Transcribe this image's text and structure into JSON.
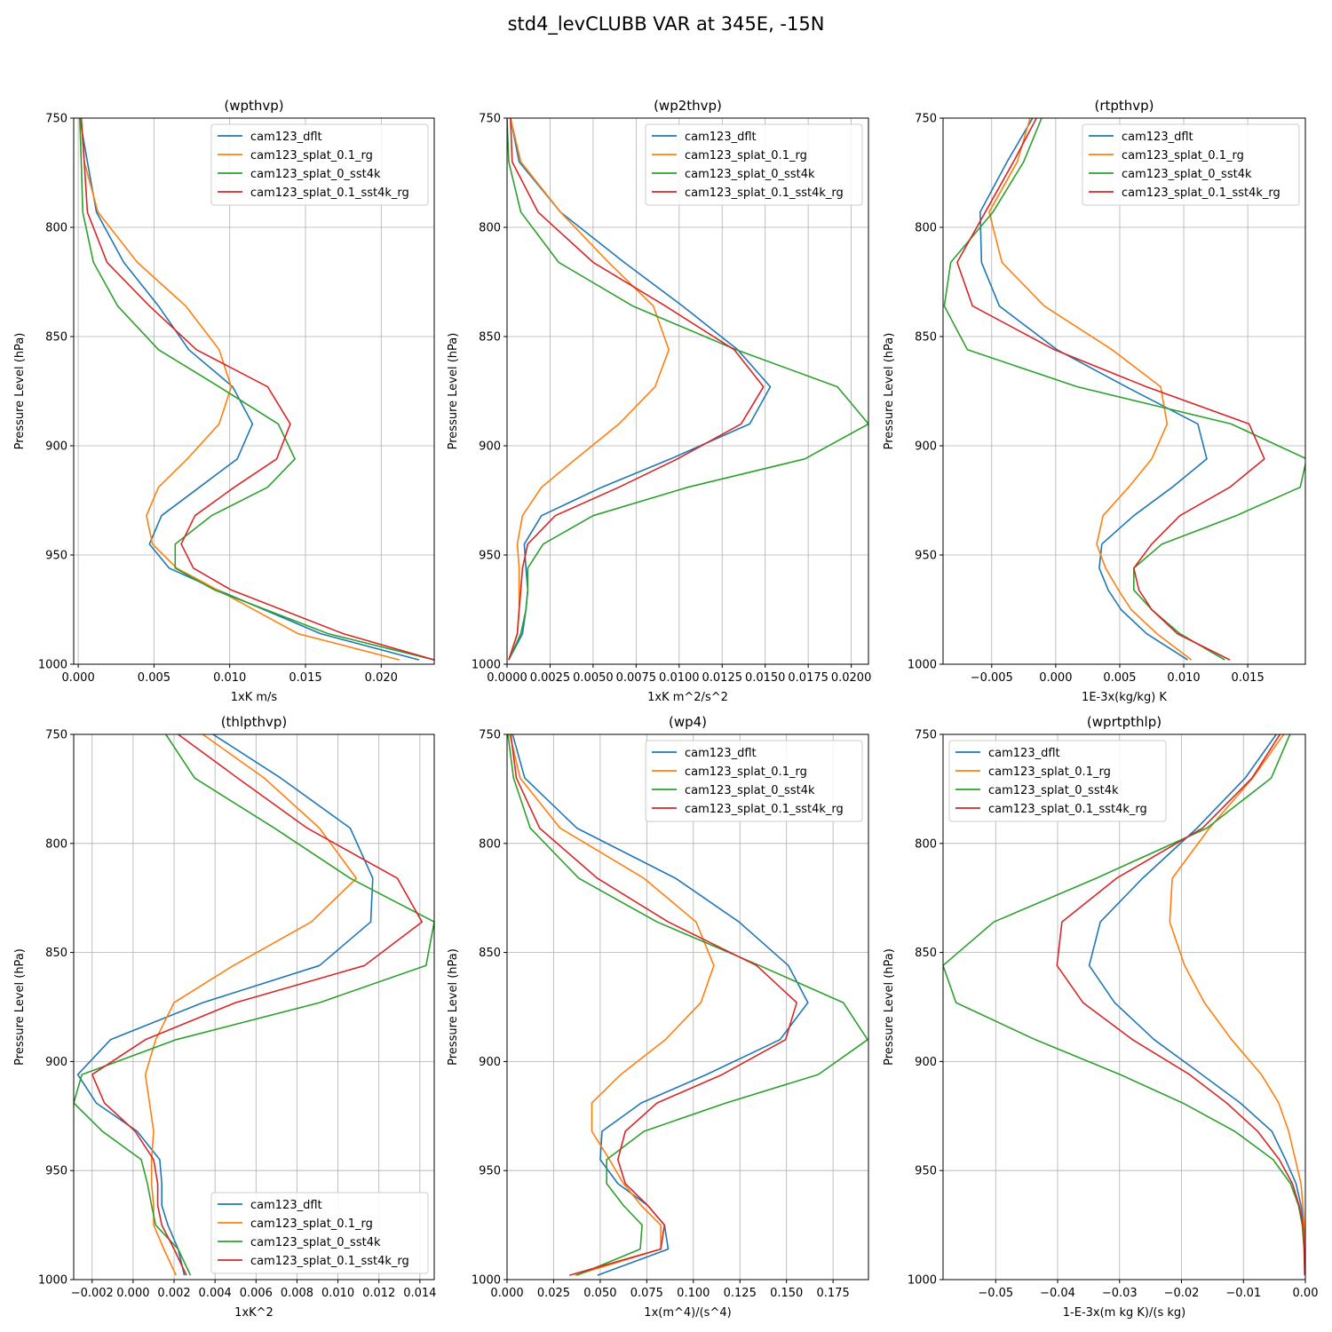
{
  "figure": {
    "title": "std4_levCLUBB VAR at 345E, -15N"
  },
  "chart_data": [
    {
      "type": "line",
      "title": "(wpthvp)",
      "xlabel": "1xK m/s",
      "ylabel": "Pressure Level (hPa)",
      "xlim": [
        -0.0003,
        0.0235
      ],
      "ylim": [
        1000,
        750
      ],
      "xticks": [
        0.0,
        0.005,
        0.01,
        0.015,
        0.02
      ],
      "xtick_labels": [
        "0.000",
        "0.005",
        "0.010",
        "0.015",
        "0.020"
      ],
      "yticks": [
        750,
        800,
        850,
        900,
        950,
        1000
      ],
      "ytick_labels": [
        "750",
        "800",
        "850",
        "900",
        "950",
        "1000"
      ],
      "legend_loc": "top-right",
      "y": [
        750,
        770,
        793,
        816,
        836,
        856,
        873,
        890,
        906,
        919,
        932,
        945,
        956,
        966,
        986,
        998
      ],
      "series": [
        {
          "name": "cam123_dflt",
          "color": "#1f77b4",
          "values": [
            0.0001,
            0.0006,
            0.0012,
            0.003,
            0.0053,
            0.0073,
            0.0102,
            0.0115,
            0.0105,
            0.008,
            0.0055,
            0.0047,
            0.006,
            0.0092,
            0.016,
            0.0225
          ]
        },
        {
          "name": "cam123_splat_0.1_rg",
          "color": "#ff7f0e",
          "values": [
            0.0002,
            0.0004,
            0.0013,
            0.0039,
            0.0071,
            0.0093,
            0.0101,
            0.0093,
            0.0072,
            0.0053,
            0.0045,
            0.0049,
            0.0065,
            0.0092,
            0.0145,
            0.0212
          ]
        },
        {
          "name": "cam123_splat_0_sst4k",
          "color": "#2ca02c",
          "values": [
            0.0001,
            0.0002,
            0.0003,
            0.001,
            0.0026,
            0.0053,
            0.0093,
            0.0132,
            0.0143,
            0.0125,
            0.0088,
            0.0064,
            0.0064,
            0.009,
            0.0165,
            0.0235
          ]
        },
        {
          "name": "cam123_splat_0.1_sst4k_rg",
          "color": "#d62728",
          "values": [
            0.0002,
            0.0004,
            0.0006,
            0.0019,
            0.0047,
            0.0078,
            0.0125,
            0.014,
            0.0131,
            0.0103,
            0.0077,
            0.0068,
            0.0076,
            0.0101,
            0.0175,
            0.0235
          ]
        }
      ]
    },
    {
      "type": "line",
      "title": "(wp2thvp)",
      "xlabel": "1xK m^2/s^2",
      "ylabel": "Pressure Level (hPa)",
      "xlim": [
        0.0,
        0.021
      ],
      "ylim": [
        1000,
        750
      ],
      "xticks": [
        0.0,
        0.0025,
        0.005,
        0.0075,
        0.01,
        0.0125,
        0.015,
        0.0175,
        0.02
      ],
      "xtick_labels": [
        "0.0000",
        "0.0025",
        "0.0050",
        "0.0075",
        "0.0100",
        "0.0125",
        "0.0150",
        "0.0175",
        "0.0200"
      ],
      "yticks": [
        750,
        800,
        850,
        900,
        950,
        1000
      ],
      "ytick_labels": [
        "750",
        "800",
        "850",
        "900",
        "950",
        "1000"
      ],
      "legend_loc": "top-right",
      "y": [
        750,
        770,
        793,
        816,
        836,
        856,
        873,
        890,
        906,
        919,
        932,
        945,
        956,
        966,
        975,
        986,
        998
      ],
      "series": [
        {
          "name": "cam123_dflt",
          "color": "#1f77b4",
          "values": [
            0.0002,
            0.0007,
            0.0031,
            0.0068,
            0.0102,
            0.0134,
            0.0153,
            0.0141,
            0.0095,
            0.0055,
            0.002,
            0.001,
            0.0011,
            0.0012,
            0.0011,
            0.0009,
            0.0001
          ]
        },
        {
          "name": "cam123_splat_0.1_rg",
          "color": "#ff7f0e",
          "values": [
            0.0002,
            0.0008,
            0.0031,
            0.0059,
            0.0085,
            0.0094,
            0.0086,
            0.0065,
            0.004,
            0.002,
            0.0009,
            0.0006,
            0.0007,
            0.0007,
            0.0007,
            0.0006,
            0.0001
          ]
        },
        {
          "name": "cam123_splat_0_sst4k",
          "color": "#2ca02c",
          "values": [
            0.0,
            0.0001,
            0.0008,
            0.003,
            0.0073,
            0.0133,
            0.0192,
            0.021,
            0.0173,
            0.0105,
            0.005,
            0.0021,
            0.0012,
            0.0012,
            0.0011,
            0.0008,
            0.0001
          ]
        },
        {
          "name": "cam123_splat_0.1_sst4k_rg",
          "color": "#d62728",
          "values": [
            0.0002,
            0.0003,
            0.0018,
            0.005,
            0.0092,
            0.0132,
            0.0149,
            0.0136,
            0.0099,
            0.0065,
            0.0028,
            0.0012,
            0.0009,
            0.0008,
            0.0007,
            0.0006,
            0.0001
          ]
        }
      ]
    },
    {
      "type": "line",
      "title": "(rtpthvp)",
      "xlabel": "1E-3x(kg/kg) K",
      "ylabel": "Pressure Level (hPa)",
      "xlim": [
        -0.0088,
        0.0195
      ],
      "ylim": [
        1000,
        750
      ],
      "xticks": [
        -0.005,
        0.0,
        0.005,
        0.01,
        0.015
      ],
      "xtick_labels": [
        "−0.005",
        "0.000",
        "0.005",
        "0.010",
        "0.015"
      ],
      "yticks": [
        750,
        800,
        850,
        900,
        950,
        1000
      ],
      "ytick_labels": [
        "750",
        "800",
        "850",
        "900",
        "950",
        "1000"
      ],
      "legend_loc": "top-right",
      "y": [
        750,
        770,
        793,
        816,
        836,
        856,
        873,
        890,
        906,
        919,
        932,
        945,
        956,
        966,
        975,
        986,
        998
      ],
      "series": [
        {
          "name": "cam123_dflt",
          "color": "#1f77b4",
          "values": [
            -0.0018,
            -0.0038,
            -0.0059,
            -0.0058,
            -0.0044,
            0.0001,
            0.0055,
            0.0111,
            0.0118,
            0.0091,
            0.0061,
            0.0036,
            0.0034,
            0.0041,
            0.0051,
            0.0071,
            0.0103
          ]
        },
        {
          "name": "cam123_splat_0.1_rg",
          "color": "#ff7f0e",
          "values": [
            -0.002,
            -0.003,
            -0.0052,
            -0.0042,
            -0.0009,
            0.0044,
            0.0082,
            0.0087,
            0.0075,
            0.0057,
            0.0037,
            0.0032,
            0.0039,
            0.0049,
            0.0059,
            0.0079,
            0.0106
          ]
        },
        {
          "name": "cam123_splat_0_sst4k",
          "color": "#2ca02c",
          "values": [
            -0.0011,
            -0.0025,
            -0.0049,
            -0.0082,
            -0.0087,
            -0.0069,
            0.0017,
            0.0137,
            0.0196,
            0.0191,
            0.0141,
            0.0083,
            0.0061,
            0.0061,
            0.0075,
            0.0097,
            0.0132
          ]
        },
        {
          "name": "cam123_splat_0.1_sst4k_rg",
          "color": "#d62728",
          "values": [
            -0.0015,
            -0.0033,
            -0.0055,
            -0.0077,
            -0.0065,
            -0.0001,
            0.0071,
            0.0151,
            0.0163,
            0.0136,
            0.0097,
            0.0075,
            0.0061,
            0.0065,
            0.0075,
            0.0095,
            0.0136
          ]
        }
      ]
    },
    {
      "type": "line",
      "title": "(thlpthvp)",
      "xlabel": "1xK^2",
      "ylabel": "Pressure Level (hPa)",
      "xlim": [
        -0.0029,
        0.0147
      ],
      "ylim": [
        1000,
        750
      ],
      "xticks": [
        -0.002,
        0.0,
        0.002,
        0.004,
        0.006,
        0.008,
        0.01,
        0.012,
        0.014
      ],
      "xtick_labels": [
        "−0.002",
        "0.000",
        "0.002",
        "0.004",
        "0.006",
        "0.008",
        "0.010",
        "0.012",
        "0.014"
      ],
      "yticks": [
        750,
        800,
        850,
        900,
        950,
        1000
      ],
      "ytick_labels": [
        "750",
        "800",
        "850",
        "900",
        "950",
        "1000"
      ],
      "legend_loc": "bottom-right",
      "y": [
        750,
        770,
        793,
        816,
        836,
        856,
        873,
        890,
        906,
        919,
        932,
        945,
        956,
        966,
        975,
        986,
        998
      ],
      "series": [
        {
          "name": "cam123_dflt",
          "color": "#1f77b4",
          "values": [
            0.0039,
            0.0072,
            0.0106,
            0.0117,
            0.0116,
            0.0091,
            0.0034,
            -0.0011,
            -0.0027,
            -0.0018,
            0.0002,
            0.0013,
            0.0014,
            0.0014,
            0.0017,
            0.0022,
            0.0025
          ]
        },
        {
          "name": "cam123_splat_0.1_rg",
          "color": "#ff7f0e",
          "values": [
            0.0034,
            0.0064,
            0.0091,
            0.0109,
            0.0087,
            0.0049,
            0.002,
            0.0011,
            0.0006,
            0.0008,
            0.001,
            0.0009,
            0.0009,
            0.001,
            0.001,
            0.0015,
            0.0021
          ]
        },
        {
          "name": "cam123_splat_0_sst4k",
          "color": "#2ca02c",
          "values": [
            0.0016,
            0.003,
            0.0069,
            0.0106,
            0.0147,
            0.0143,
            0.0091,
            0.0021,
            -0.0025,
            -0.0029,
            -0.0015,
            0.0004,
            0.0007,
            0.0009,
            0.0011,
            0.0022,
            0.0028
          ]
        },
        {
          "name": "cam123_splat_0.1_sst4k_rg",
          "color": "#d62728",
          "values": [
            0.0022,
            0.0051,
            0.0085,
            0.0129,
            0.0141,
            0.0113,
            0.005,
            0.0006,
            -0.002,
            -0.0014,
            0.0001,
            0.001,
            0.0012,
            0.0012,
            0.0014,
            0.002,
            0.0026
          ]
        }
      ]
    },
    {
      "type": "line",
      "title": "(wp4)",
      "xlabel": "1x(m^4)/(s^4)",
      "ylabel": "Pressure Level (hPa)",
      "xlim": [
        0.0,
        0.194
      ],
      "ylim": [
        1000,
        750
      ],
      "xticks": [
        0.0,
        0.025,
        0.05,
        0.075,
        0.1,
        0.125,
        0.15,
        0.175
      ],
      "xtick_labels": [
        "0.000",
        "0.025",
        "0.050",
        "0.075",
        "0.100",
        "0.125",
        "0.150",
        "0.175"
      ],
      "yticks": [
        750,
        800,
        850,
        900,
        950,
        1000
      ],
      "ytick_labels": [
        "750",
        "800",
        "850",
        "900",
        "950",
        "1000"
      ],
      "legend_loc": "top-right",
      "y": [
        750,
        770,
        793,
        816,
        836,
        856,
        873,
        890,
        906,
        919,
        932,
        945,
        956,
        966,
        975,
        986,
        998
      ],
      "series": [
        {
          "name": "cam123_dflt",
          "color": "#1f77b4",
          "values": [
            0.003,
            0.0095,
            0.0375,
            0.0905,
            0.1245,
            0.151,
            0.1615,
            0.1465,
            0.107,
            0.072,
            0.051,
            0.05,
            0.0595,
            0.0755,
            0.0845,
            0.0865,
            0.0485
          ]
        },
        {
          "name": "cam123_splat_0.1_rg",
          "color": "#ff7f0e",
          "values": [
            0.0015,
            0.007,
            0.0285,
            0.0735,
            0.1015,
            0.111,
            0.104,
            0.085,
            0.061,
            0.0455,
            0.0455,
            0.055,
            0.0625,
            0.072,
            0.0825,
            0.0825,
            0.0365
          ]
        },
        {
          "name": "cam123_splat_0_sst4k",
          "color": "#2ca02c",
          "values": [
            0.0005,
            0.0035,
            0.0125,
            0.0385,
            0.0805,
            0.1355,
            0.1805,
            0.1935,
            0.167,
            0.1175,
            0.0735,
            0.0535,
            0.0535,
            0.0625,
            0.0725,
            0.0715,
            0.0375
          ]
        },
        {
          "name": "cam123_splat_0.1_sst4k_rg",
          "color": "#d62728",
          "values": [
            0.002,
            0.005,
            0.0175,
            0.0485,
            0.0865,
            0.134,
            0.1555,
            0.1495,
            0.1155,
            0.0805,
            0.0635,
            0.0595,
            0.0635,
            0.0755,
            0.0845,
            0.0825,
            0.0335
          ]
        }
      ]
    },
    {
      "type": "line",
      "title": "(wprtpthlp)",
      "xlabel": "1-E-3x(m kg K)/(s kg)",
      "ylabel": "Pressure Level (hPa)",
      "xlim": [
        -0.0585,
        0.0
      ],
      "ylim": [
        1000,
        750
      ],
      "xticks": [
        -0.05,
        -0.04,
        -0.03,
        -0.02,
        -0.01,
        0.0
      ],
      "xtick_labels": [
        "−0.05",
        "−0.04",
        "−0.03",
        "−0.02",
        "−0.01",
        "0.00"
      ],
      "yticks": [
        750,
        800,
        850,
        900,
        950,
        1000
      ],
      "ytick_labels": [
        "750",
        "800",
        "850",
        "900",
        "950",
        "1000"
      ],
      "legend_loc": "top-left",
      "y": [
        750,
        770,
        793,
        816,
        836,
        856,
        873,
        890,
        906,
        919,
        932,
        945,
        956,
        966,
        975,
        986,
        998
      ],
      "series": [
        {
          "name": "cam123_dflt",
          "color": "#1f77b4",
          "values": [
            -0.0047,
            -0.0097,
            -0.0175,
            -0.0263,
            -0.0331,
            -0.0349,
            -0.0308,
            -0.0244,
            -0.0167,
            -0.0105,
            -0.0054,
            -0.0032,
            -0.0015,
            -0.0007,
            -0.0003,
            -0.0001,
            -0.0001
          ]
        },
        {
          "name": "cam123_splat_0.1_rg",
          "color": "#ff7f0e",
          "values": [
            -0.0035,
            -0.0085,
            -0.0155,
            -0.0215,
            -0.0219,
            -0.0195,
            -0.0163,
            -0.0119,
            -0.0071,
            -0.0043,
            -0.0027,
            -0.0016,
            -0.0007,
            -0.0004,
            -0.0002,
            -0.0001,
            -0.0001
          ]
        },
        {
          "name": "cam123_splat_0_sst4k",
          "color": "#2ca02c",
          "values": [
            -0.0025,
            -0.0055,
            -0.0159,
            -0.0338,
            -0.0503,
            -0.0585,
            -0.0564,
            -0.0436,
            -0.0299,
            -0.0198,
            -0.0114,
            -0.0052,
            -0.0024,
            -0.0011,
            -0.0005,
            -0.0002,
            -0.0001
          ]
        },
        {
          "name": "cam123_splat_0.1_sst4k_rg",
          "color": "#d62728",
          "values": [
            -0.0041,
            -0.0086,
            -0.0166,
            -0.0305,
            -0.0393,
            -0.0401,
            -0.0359,
            -0.0279,
            -0.0187,
            -0.0127,
            -0.0077,
            -0.0042,
            -0.0021,
            -0.001,
            -0.0004,
            -0.0002,
            -0.0001
          ]
        }
      ]
    }
  ]
}
